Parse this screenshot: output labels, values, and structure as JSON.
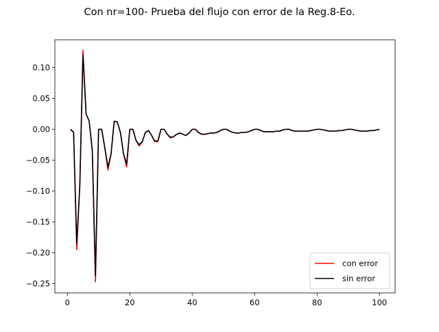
{
  "chart_data": {
    "type": "line",
    "title": "Con nr=100- Prueba del flujo con error de la Reg.8-Eo.",
    "xlabel": "",
    "ylabel": "",
    "xlim": [
      -4,
      105
    ],
    "ylim": [
      -0.265,
      0.145
    ],
    "x_ticks": [
      0,
      20,
      40,
      60,
      80,
      100
    ],
    "y_ticks": [
      0.1,
      0.05,
      0.0,
      -0.05,
      -0.1,
      -0.15,
      -0.2,
      -0.25
    ],
    "x_tick_labels": [
      "0",
      "20",
      "40",
      "60",
      "80",
      "100"
    ],
    "y_tick_labels": [
      "0.10",
      "0.05",
      "0.00",
      "−0.05",
      "−0.10",
      "−0.15",
      "−0.20",
      "−0.25"
    ],
    "grid": false,
    "legend_position": "lower-right",
    "x": [
      1,
      2,
      3,
      4,
      5,
      6,
      7,
      8,
      9,
      10,
      11,
      12,
      13,
      14,
      15,
      16,
      17,
      18,
      19,
      20,
      21,
      22,
      23,
      24,
      25,
      26,
      27,
      28,
      29,
      30,
      31,
      32,
      33,
      34,
      35,
      36,
      37,
      38,
      39,
      40,
      41,
      42,
      43,
      44,
      45,
      46,
      47,
      48,
      49,
      50,
      51,
      52,
      53,
      54,
      55,
      56,
      57,
      58,
      59,
      60,
      61,
      62,
      63,
      64,
      65,
      66,
      67,
      68,
      69,
      70,
      71,
      72,
      73,
      74,
      75,
      76,
      77,
      78,
      79,
      80,
      81,
      82,
      83,
      84,
      85,
      86,
      87,
      88,
      89,
      90,
      91,
      92,
      93,
      94,
      95,
      96,
      97,
      98,
      99,
      100
    ],
    "series": [
      {
        "name": "con error",
        "color": "#ff0000",
        "values": [
          0.0,
          -0.005,
          -0.195,
          -0.09,
          0.128,
          0.025,
          0.013,
          -0.035,
          -0.247,
          0.0,
          0.0,
          -0.03,
          -0.066,
          -0.04,
          0.013,
          0.012,
          -0.005,
          -0.04,
          -0.061,
          0.0,
          0.0,
          -0.018,
          -0.027,
          -0.02,
          -0.005,
          -0.002,
          -0.01,
          -0.02,
          -0.02,
          0.0,
          0.0,
          -0.008,
          -0.014,
          -0.012,
          -0.008,
          -0.006,
          -0.008,
          -0.01,
          -0.006,
          0.0,
          0.0,
          -0.005,
          -0.008,
          -0.008,
          -0.007,
          -0.006,
          -0.006,
          -0.005,
          -0.002,
          0.0,
          0.0,
          -0.003,
          -0.005,
          -0.006,
          -0.006,
          -0.005,
          -0.005,
          -0.004,
          -0.002,
          0.0,
          0.0,
          -0.002,
          -0.004,
          -0.004,
          -0.004,
          -0.004,
          -0.003,
          -0.003,
          -0.001,
          0.0,
          0.0,
          -0.002,
          -0.003,
          -0.003,
          -0.003,
          -0.003,
          -0.003,
          -0.002,
          -0.001,
          0.0,
          0.0,
          -0.001,
          -0.002,
          -0.003,
          -0.003,
          -0.003,
          -0.002,
          -0.002,
          -0.001,
          0.0,
          0.0,
          -0.001,
          -0.002,
          -0.003,
          -0.003,
          -0.003,
          -0.002,
          -0.002,
          -0.001,
          0.0
        ]
      },
      {
        "name": "sin error",
        "color": "#000000",
        "values": [
          0.0,
          -0.005,
          -0.185,
          -0.09,
          0.12,
          0.025,
          0.013,
          -0.035,
          -0.237,
          0.0,
          0.0,
          -0.03,
          -0.061,
          -0.04,
          0.013,
          0.012,
          -0.005,
          -0.04,
          -0.056,
          0.0,
          0.0,
          -0.018,
          -0.025,
          -0.02,
          -0.005,
          -0.002,
          -0.01,
          -0.019,
          -0.019,
          0.0,
          0.0,
          -0.008,
          -0.013,
          -0.012,
          -0.008,
          -0.006,
          -0.008,
          -0.01,
          -0.006,
          0.0,
          0.0,
          -0.005,
          -0.008,
          -0.008,
          -0.007,
          -0.006,
          -0.006,
          -0.005,
          -0.002,
          0.0,
          0.0,
          -0.003,
          -0.005,
          -0.006,
          -0.006,
          -0.005,
          -0.005,
          -0.004,
          -0.002,
          0.0,
          0.0,
          -0.002,
          -0.004,
          -0.004,
          -0.004,
          -0.004,
          -0.003,
          -0.003,
          -0.001,
          0.0,
          0.0,
          -0.002,
          -0.003,
          -0.003,
          -0.003,
          -0.003,
          -0.003,
          -0.002,
          -0.001,
          0.0,
          0.0,
          -0.001,
          -0.002,
          -0.003,
          -0.003,
          -0.003,
          -0.002,
          -0.002,
          -0.001,
          0.0,
          0.0,
          -0.001,
          -0.002,
          -0.003,
          -0.003,
          -0.003,
          -0.002,
          -0.002,
          -0.001,
          0.0
        ]
      }
    ]
  }
}
